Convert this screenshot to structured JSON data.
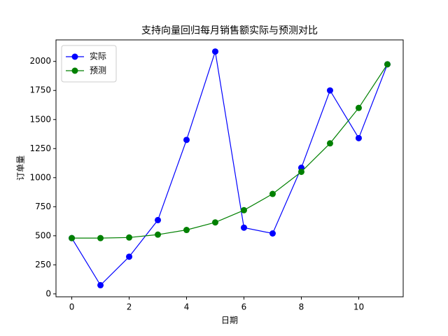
{
  "chart_data": {
    "type": "line",
    "title": "支持向量回归每月销售额实际与预测对比",
    "x_label": "日期",
    "y_label": "订单量",
    "x": [
      0,
      1,
      2,
      3,
      4,
      5,
      6,
      7,
      8,
      9,
      10,
      11
    ],
    "series": [
      {
        "name": "实际",
        "color": "#0000ff",
        "values": [
          480,
          75,
          320,
          635,
          1325,
          2085,
          570,
          520,
          1085,
          1750,
          1340,
          1975
        ]
      },
      {
        "name": "预测",
        "color": "#008000",
        "values": [
          480,
          480,
          485,
          510,
          550,
          615,
          720,
          860,
          1050,
          1295,
          1600,
          1975
        ]
      }
    ],
    "xlim": [
      -0.55,
      11.55
    ],
    "xticks": [
      0,
      2,
      4,
      6,
      8,
      10
    ],
    "ylim": [
      -25,
      2185
    ],
    "yticks": [
      0,
      250,
      500,
      750,
      1000,
      1250,
      1500,
      1750,
      2000
    ],
    "legend": "upper left"
  }
}
